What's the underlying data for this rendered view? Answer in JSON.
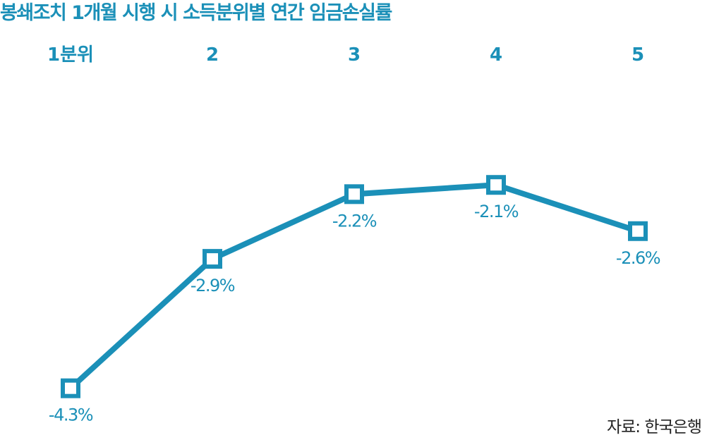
{
  "chart_data": {
    "type": "line",
    "title": "봉쇄조치 1개월 시행 시 소득분위별 연간 임금손실률",
    "categories": [
      "1분위",
      "2",
      "3",
      "4",
      "5"
    ],
    "series": [
      {
        "values": [
          -4.3,
          -2.9,
          -2.2,
          -2.1,
          -2.6
        ],
        "data_labels": [
          "-4.3%",
          "-2.9%",
          "-2.2%",
          "-2.1%",
          "-2.6%"
        ]
      }
    ],
    "ylim": [
      -4.6,
      -1.0
    ],
    "grid": false,
    "legend": "none",
    "marker": "hollow-square",
    "category_labels_position": "top"
  },
  "source": "자료: 한국은행",
  "colors": {
    "accent": "#1b90b8",
    "title": "#1b90b8",
    "text": "#222222",
    "background": "#ffffff"
  }
}
